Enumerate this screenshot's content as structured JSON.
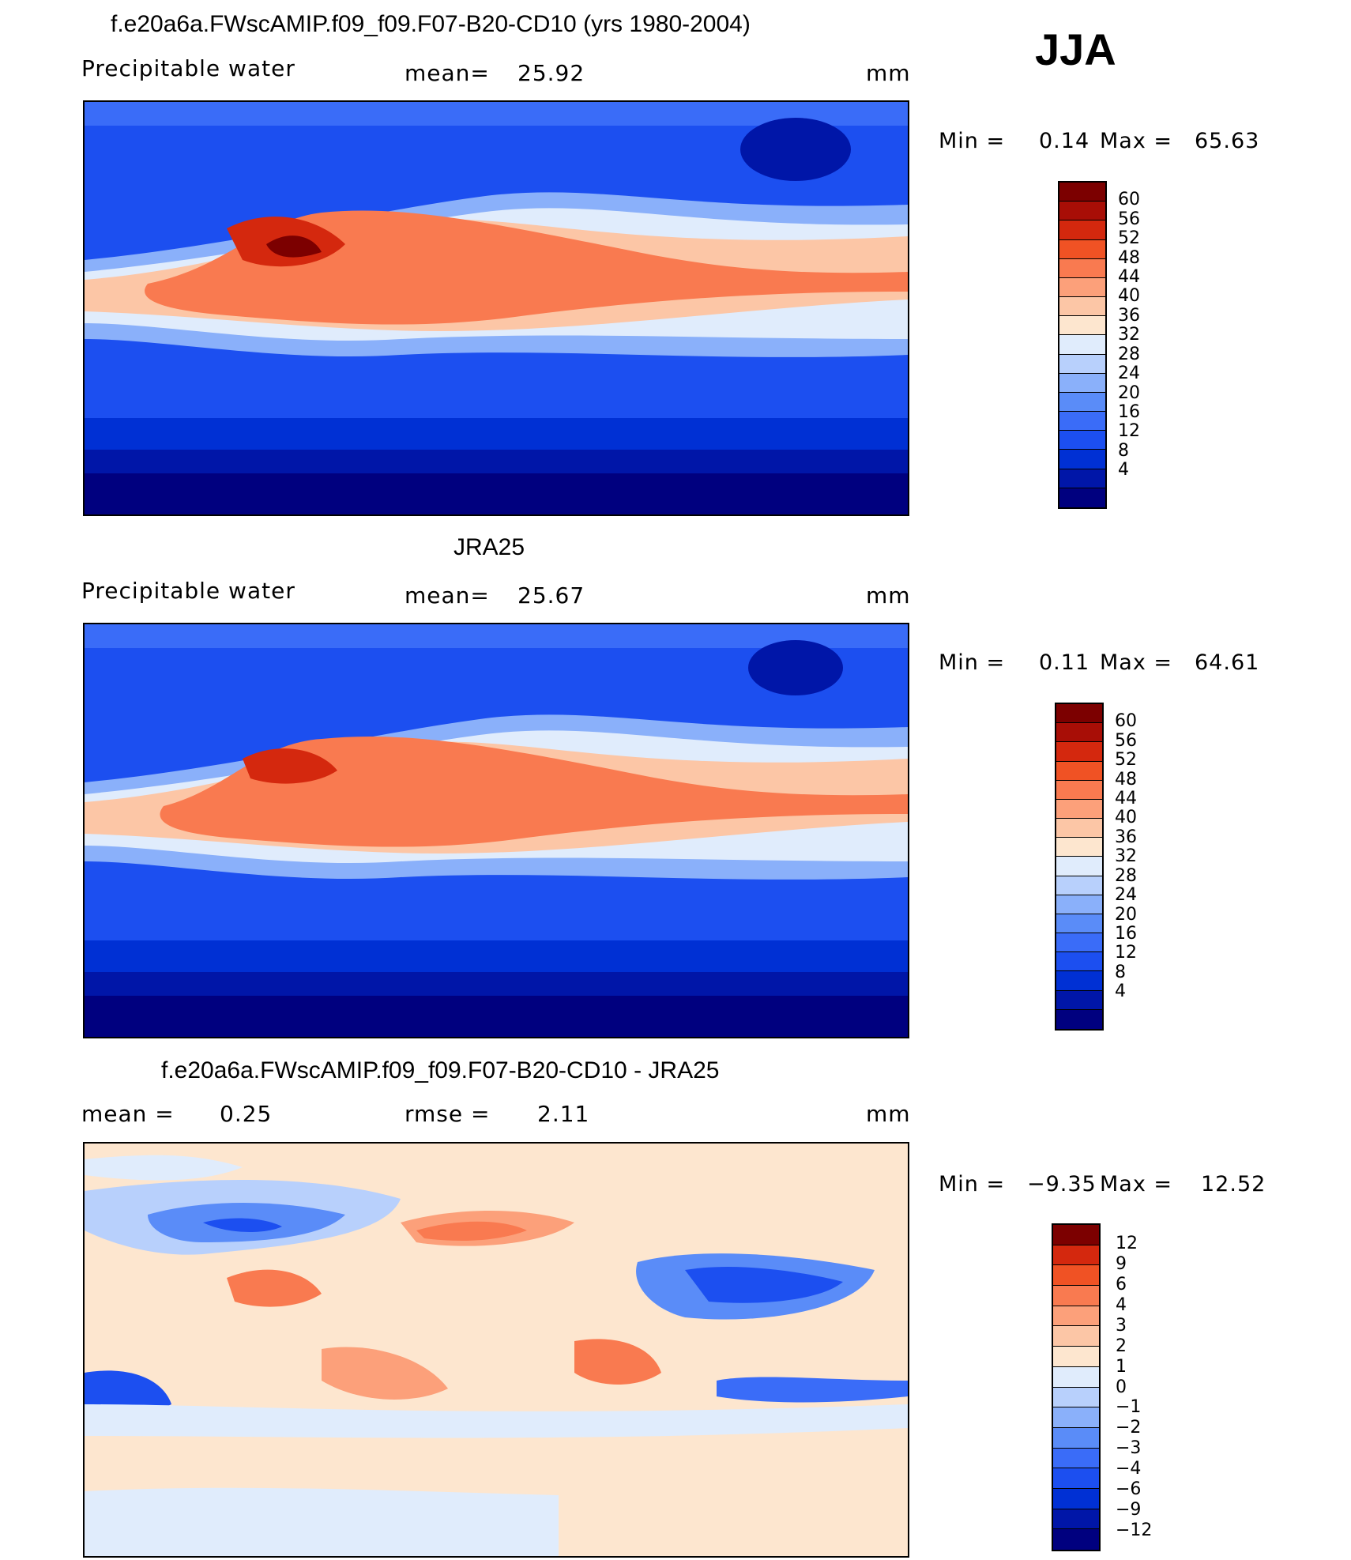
{
  "season": "JJA",
  "colors": {
    "pw_scale": [
      "#00007f",
      "#0016a8",
      "#0030d4",
      "#1c4ff0",
      "#3a6cf8",
      "#5a8cf8",
      "#8ab0fa",
      "#b8d0fc",
      "#e0ecfc",
      "#fde6cf",
      "#fcc6a6",
      "#fca07a",
      "#f97a50",
      "#f05224",
      "#d4280e",
      "#a80e06",
      "#7c0000"
    ],
    "diff_scale": [
      "#00007f",
      "#0016a8",
      "#0030d4",
      "#1c4ff0",
      "#3a6cf8",
      "#5a8cf8",
      "#8ab0fa",
      "#b8d0fc",
      "#e0ecfc",
      "#fde6cf",
      "#fcc6a6",
      "#fca07a",
      "#f97a50",
      "#f05224",
      "#d4280e",
      "#7c0000"
    ]
  },
  "panels": [
    {
      "id": "model",
      "title": "f.e20a6a.FWscAMIP.f09_f09.F07-B20-CD10 (yrs 1980-2004)",
      "left_label": "Precipitable  water",
      "stat_label": "mean=",
      "stat_value": "25.92",
      "units": "mm",
      "min_label": "Min  =",
      "min_value": "0.14",
      "max_label": "Max  =",
      "max_value": "65.63",
      "colorbar_labels": [
        "60",
        "56",
        "52",
        "48",
        "44",
        "40",
        "36",
        "32",
        "28",
        "24",
        "20",
        "16",
        "12",
        "8",
        "4"
      ]
    },
    {
      "id": "obs",
      "title": "JRA25",
      "left_label": "Precipitable  water",
      "stat_label": "mean=",
      "stat_value": "25.67",
      "units": "mm",
      "min_label": "Min  =",
      "min_value": "0.11",
      "max_label": "Max  =",
      "max_value": "64.61",
      "colorbar_labels": [
        "60",
        "56",
        "52",
        "48",
        "44",
        "40",
        "36",
        "32",
        "28",
        "24",
        "20",
        "16",
        "12",
        "8",
        "4"
      ]
    },
    {
      "id": "diff",
      "title": "f.e20a6a.FWscAMIP.f09_f09.F07-B20-CD10 - JRA25",
      "left_label": "mean  =",
      "left_value": "0.25",
      "stat_label": "rmse  =",
      "stat_value": "2.11",
      "units": "mm",
      "min_label": "Min  =",
      "min_value": "−9.35",
      "max_label": "Max  =",
      "max_value": "12.52",
      "colorbar_labels": [
        "12",
        "9",
        "6",
        "4",
        "3",
        "2",
        "1",
        "0",
        "−1",
        "−2",
        "−3",
        "−4",
        "−6",
        "−9",
        "−12"
      ]
    }
  ]
}
